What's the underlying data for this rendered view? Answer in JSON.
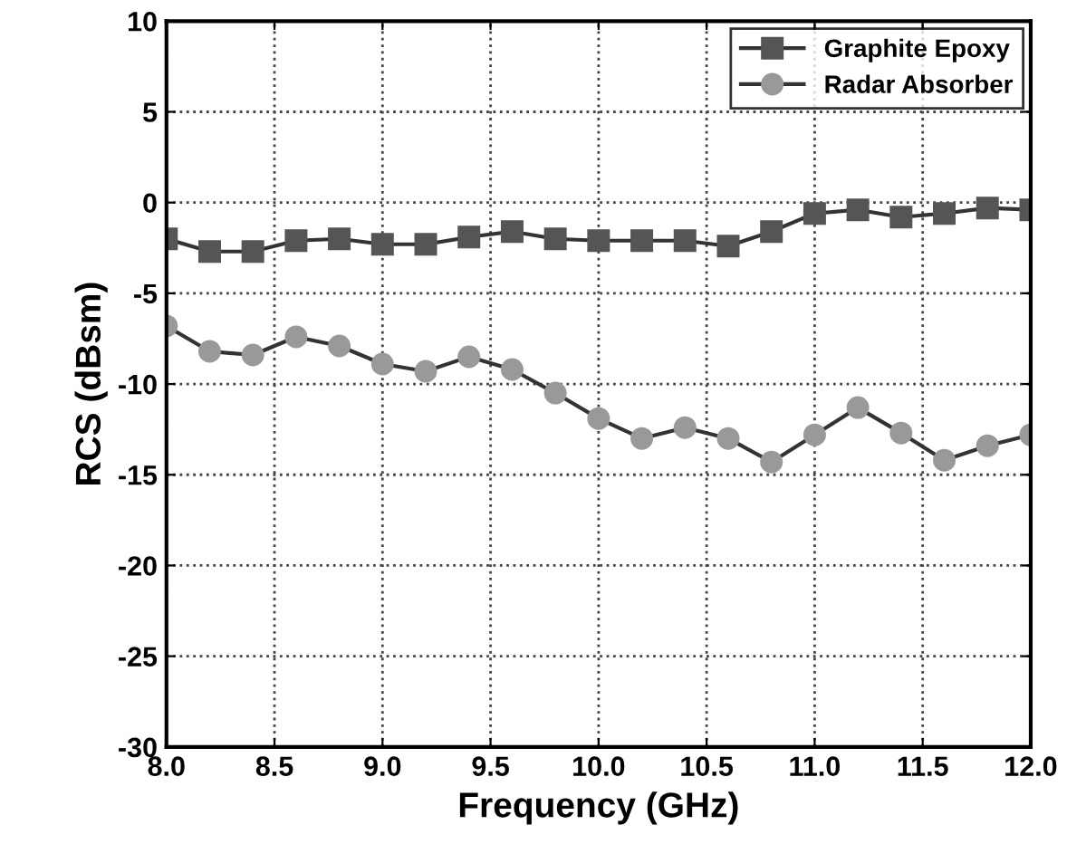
{
  "chart_data": {
    "type": "line",
    "xlabel": "Frequency (GHz)",
    "ylabel": "RCS (dBsm)",
    "x": [
      8.0,
      8.2,
      8.4,
      8.6,
      8.8,
      9.0,
      9.2,
      9.4,
      9.6,
      9.8,
      10.0,
      10.2,
      10.4,
      10.6,
      10.8,
      11.0,
      11.2,
      11.4,
      11.6,
      11.8,
      12.0
    ],
    "series": [
      {
        "name": "Graphite Epoxy",
        "color": "#555555",
        "marker": "square",
        "values": [
          -2.0,
          -2.7,
          -2.7,
          -2.1,
          -2.0,
          -2.3,
          -2.3,
          -1.9,
          -1.6,
          -2.0,
          -2.1,
          -2.1,
          -2.1,
          -2.4,
          -1.6,
          -0.6,
          -0.4,
          -0.8,
          -0.6,
          -0.3,
          -0.4
        ]
      },
      {
        "name": "Radar Absorber",
        "color": "#999999",
        "marker": "circle",
        "values": [
          -6.8,
          -8.2,
          -8.4,
          -7.4,
          -7.9,
          -8.9,
          -9.3,
          -8.5,
          -9.2,
          -10.5,
          -11.9,
          -13.0,
          -12.4,
          -13.0,
          -14.3,
          -12.8,
          -11.3,
          -12.7,
          -14.2,
          -13.4,
          -12.8
        ]
      }
    ],
    "xlim": [
      8.0,
      12.0
    ],
    "ylim": [
      -30,
      10
    ],
    "xticks": [
      {
        "value": 8,
        "label": "8.0"
      },
      8.5,
      {
        "value": 9,
        "label": "9.0"
      },
      9.5,
      {
        "value": 10,
        "label": "10.0"
      },
      10.5,
      {
        "value": 11,
        "label": "11.0"
      },
      11.5,
      {
        "value": 12,
        "label": "12.0"
      }
    ],
    "yticks": [
      -30,
      -25,
      -20,
      -15,
      -10,
      -5,
      0,
      5,
      10
    ],
    "grid": true,
    "legend": "top right",
    "line_style": "solid"
  }
}
